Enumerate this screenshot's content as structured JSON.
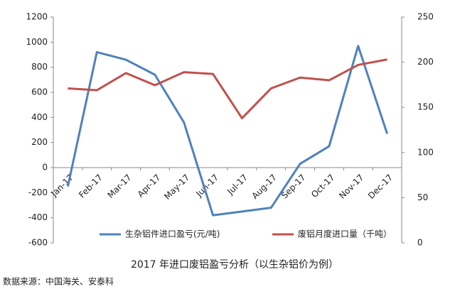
{
  "chart_data": {
    "type": "line",
    "title": "2017 年进口废铝盈亏分析（以生杂铝价为例）",
    "source": "数据来源：中国海关、安泰科",
    "categories": [
      "Jan-17",
      "Feb-17",
      "Mar-17",
      "Apr-17",
      "May-17",
      "Jun-17",
      "Jul-17",
      "Aug-17",
      "Sep-17",
      "Oct-17",
      "Nov-17",
      "Dec-17"
    ],
    "series": [
      {
        "name": "生杂铝件进口盈亏(元/吨)",
        "color": "#4f81bd",
        "values": [
          -150,
          920,
          860,
          740,
          360,
          -380,
          -350,
          -320,
          30,
          170,
          970,
          270
        ]
      },
      {
        "name": "废铝月度进口量（千吨）",
        "color": "#c0504d",
        "axis": "y2",
        "values": [
          171,
          169,
          188,
          174.5,
          189,
          187,
          138,
          171,
          183,
          180,
          197,
          203
        ]
      }
    ],
    "ylim": [
      -600,
      1200
    ],
    "yticks": [
      -600,
      -400,
      -200,
      0,
      200,
      400,
      600,
      800,
      1000,
      1200
    ],
    "y2lim": [
      0,
      250
    ],
    "y2ticks": [
      0,
      50,
      100,
      150,
      200,
      250
    ],
    "grid": false
  }
}
